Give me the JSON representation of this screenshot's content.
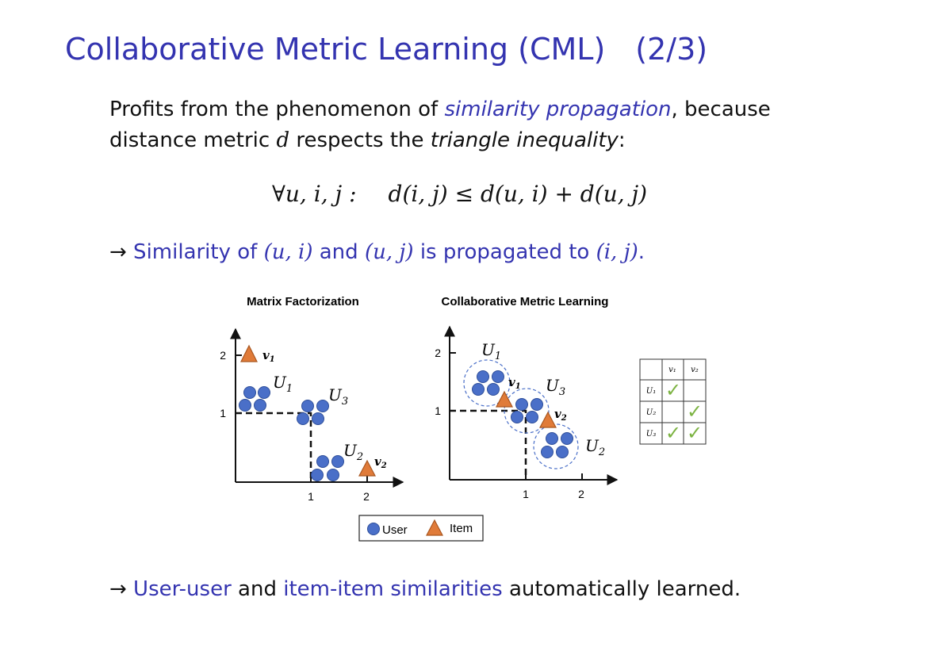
{
  "title": "Collaborative Metric Learning (CML)",
  "page_counter": "(2/3)",
  "intro": {
    "part1": "Profits from the phenomenon of ",
    "highlight": "similarity propagation",
    "part2": ", because",
    "part3": "distance metric ",
    "var_d": "d",
    "part4": " respects the ",
    "italic": "triangle inequality",
    "part5": ":"
  },
  "formula": {
    "quantifier": "∀u, i, j :",
    "inequality": "d(i, j) ≤ d(u, i) + d(u, j)"
  },
  "bullet1": {
    "arrow": "→",
    "t1": " Similarity of ",
    "m1": "(u, i)",
    "t2": " and ",
    "m2": "(u, j)",
    "t3": " is propagated to ",
    "m3": "(i, j)",
    "t4": "."
  },
  "bullet2": {
    "arrow": "→",
    "h1": " User-user",
    "t1": " and ",
    "h2": "item-item similarities",
    "t2": " automatically learned."
  },
  "figure": {
    "left_title": "Matrix Factorization",
    "right_title": "Collaborative Metric Learning",
    "left_ticks": {
      "y2": "2",
      "y1": "1",
      "x1": "1",
      "x2": "2"
    },
    "right_ticks": {
      "y2": "2",
      "y1": "1",
      "x1": "1",
      "x2": "2"
    },
    "labels": {
      "U1": "U",
      "U2": "U",
      "U3": "U",
      "s1": "1",
      "s2": "2",
      "s3": "3",
      "v": "v"
    },
    "legend": {
      "user": "User",
      "item": "Item"
    },
    "table": {
      "col1": "v₁",
      "col2": "v₂",
      "row1": "U₁",
      "row2": "U₂",
      "row3": "U₃",
      "check": "✓"
    },
    "colors": {
      "user": "#4a6fc8",
      "user_stroke": "#2f4f9a",
      "item": "#e07b39",
      "item_stroke": "#a9561f",
      "check": "#7cb342",
      "dashed_circle": "#4a6fc8"
    }
  }
}
